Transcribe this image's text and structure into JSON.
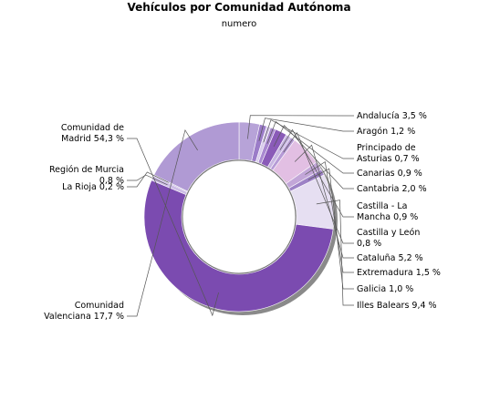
{
  "chart_data": {
    "type": "pie",
    "title": "Vehículos por Comunidad Autónoma",
    "subtitle": "numero",
    "donut": true,
    "slices": [
      {
        "name": "Andalucía",
        "value": 3.5,
        "label": [
          "Andalucía 3,5 %"
        ],
        "color": "#b7a3d8"
      },
      {
        "name": "Aragón",
        "value": 1.2,
        "label": [
          "Aragón 1,2 %"
        ],
        "color": "#9b7cc8"
      },
      {
        "name": "Principado de Asturias",
        "value": 0.7,
        "label": [
          "Principado de",
          "Asturias 0,7 %"
        ],
        "color": "#d9cdec"
      },
      {
        "name": "Canarias",
        "value": 0.9,
        "label": [
          "Canarias 0,9 %"
        ],
        "color": "#a989d0"
      },
      {
        "name": "Cantabria",
        "value": 2.0,
        "label": [
          "Cantabria 2,0 %"
        ],
        "color": "#8a5bb8"
      },
      {
        "name": "Castilla - La Mancha",
        "value": 0.9,
        "label": [
          "Castilla - La",
          "Mancha 0,9 %"
        ],
        "color": "#c8b6e2"
      },
      {
        "name": "Castilla y León",
        "value": 0.8,
        "label": [
          "Castilla y León",
          "0,8 %"
        ],
        "color": "#b69ad6"
      },
      {
        "name": "Cataluña",
        "value": 5.2,
        "label": [
          "Cataluña 5,2 %"
        ],
        "color": "#e2bfe3"
      },
      {
        "name": "Extremadura",
        "value": 1.5,
        "label": [
          "Extremadura 1,5 %"
        ],
        "color": "#c2a6d8"
      },
      {
        "name": "Galicia",
        "value": 1.0,
        "label": [
          "Galicia 1,0 %"
        ],
        "color": "#9d82c6"
      },
      {
        "name": "Illes Balears",
        "value": 9.4,
        "label": [
          "Illes Balears 9,4 %"
        ],
        "color": "#e6dff2"
      },
      {
        "name": "Comunidad de Madrid",
        "value": 54.3,
        "label": [
          "Comunidad de",
          "Madrid 54,3 %"
        ],
        "color": "#7b4bb0"
      },
      {
        "name": "Región de Murcia",
        "value": 0.8,
        "label": [
          "Región de Murcia",
          "0,8 %"
        ],
        "color": "#cdbde6"
      },
      {
        "name": "La Rioja",
        "value": 0.2,
        "label": [
          "La Rioja 0,2 %"
        ],
        "color": "#9880c4"
      },
      {
        "name": "Comunidad Valenciana",
        "value": 17.7,
        "label": [
          "Comunidad",
          "Valenciana 17,7 %"
        ],
        "color": "#b09ad4"
      }
    ]
  }
}
